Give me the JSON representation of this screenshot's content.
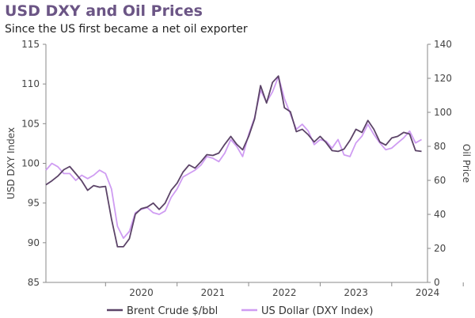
{
  "title": "USD DXY and Oil Prices",
  "subtitle": "Since the US first became a net oil exporter",
  "colors": {
    "brent": "#5c4468",
    "dxy": "#cf9cf2",
    "title": "#6b5585",
    "axis": "#8a8a8a"
  },
  "chart_data": {
    "type": "line",
    "title": "USD DXY and Oil Prices",
    "subtitle": "Since the US first became a net oil exporter",
    "xlabel": "",
    "x_ticks": [
      "2020",
      "2021",
      "2022",
      "2023",
      "2024"
    ],
    "xlim": [
      "2019-03",
      "2024-07"
    ],
    "y_left": {
      "label": "USD DXY Index",
      "range": [
        85,
        115
      ],
      "ticks": [
        "85",
        "90",
        "95",
        "100",
        "105",
        "110",
        "115"
      ]
    },
    "y_right": {
      "label": "Oil Price",
      "range": [
        0,
        140
      ],
      "ticks": [
        "0",
        "20",
        "40",
        "60",
        "80",
        "100",
        "120",
        "140"
      ]
    },
    "grid": false,
    "legend_position": "bottom",
    "series": [
      {
        "name": "Brent Crude $/bbl",
        "axis": "left",
        "color": "#5c4468",
        "x": [
          "2019-03",
          "2019-04",
          "2019-05",
          "2019-06",
          "2019-07",
          "2019-08",
          "2019-09",
          "2019-10",
          "2019-11",
          "2019-12",
          "2020-01",
          "2020-02",
          "2020-03",
          "2020-04",
          "2020-05",
          "2020-06",
          "2020-07",
          "2020-08",
          "2020-09",
          "2020-10",
          "2020-11",
          "2020-12",
          "2021-01",
          "2021-02",
          "2021-03",
          "2021-04",
          "2021-05",
          "2021-06",
          "2021-07",
          "2021-08",
          "2021-09",
          "2021-10",
          "2021-11",
          "2021-12",
          "2022-01",
          "2022-02",
          "2022-03",
          "2022-04",
          "2022-05",
          "2022-06",
          "2022-07",
          "2022-08",
          "2022-09",
          "2022-10",
          "2022-11",
          "2022-12",
          "2023-01",
          "2023-02",
          "2023-03",
          "2023-04",
          "2023-05",
          "2023-06",
          "2023-07",
          "2023-08",
          "2023-09",
          "2023-10",
          "2023-11",
          "2023-12",
          "2024-01",
          "2024-02",
          "2024-03",
          "2024-04",
          "2024-05",
          "2024-06"
        ],
        "values": [
          97.3,
          97.8,
          98.4,
          99.2,
          99.6,
          98.7,
          97.8,
          96.6,
          97.2,
          97.0,
          97.1,
          93.0,
          89.5,
          89.5,
          90.5,
          93.6,
          94.3,
          94.5,
          95.0,
          94.2,
          95.0,
          96.6,
          97.5,
          98.9,
          99.8,
          99.4,
          100.2,
          101.1,
          101.0,
          101.3,
          102.4,
          103.4,
          102.4,
          101.7,
          103.4,
          105.6,
          109.8,
          107.6,
          110.2,
          111.0,
          107.0,
          106.5,
          104.0,
          104.3,
          103.6,
          102.7,
          103.4,
          102.6,
          101.6,
          101.5,
          101.8,
          102.9,
          104.3,
          103.9,
          105.4,
          104.3,
          102.7,
          102.3,
          103.2,
          103.4,
          103.9,
          103.7,
          101.6,
          101.5
        ]
      },
      {
        "name": "US Dollar (DXY Index)",
        "axis": "right",
        "color": "#cf9cf2",
        "x": [
          "2019-03",
          "2019-04",
          "2019-05",
          "2019-06",
          "2019-07",
          "2019-08",
          "2019-09",
          "2019-10",
          "2019-11",
          "2019-12",
          "2020-01",
          "2020-02",
          "2020-03",
          "2020-04",
          "2020-05",
          "2020-06",
          "2020-07",
          "2020-08",
          "2020-09",
          "2020-10",
          "2020-11",
          "2020-12",
          "2021-01",
          "2021-02",
          "2021-03",
          "2021-04",
          "2021-05",
          "2021-06",
          "2021-07",
          "2021-08",
          "2021-09",
          "2021-10",
          "2021-11",
          "2021-12",
          "2022-01",
          "2022-02",
          "2022-03",
          "2022-04",
          "2022-05",
          "2022-06",
          "2022-07",
          "2022-08",
          "2022-09",
          "2022-10",
          "2022-11",
          "2022-12",
          "2023-01",
          "2023-02",
          "2023-03",
          "2023-04",
          "2023-05",
          "2023-06",
          "2023-07",
          "2023-08",
          "2023-09",
          "2023-10",
          "2023-11",
          "2023-12",
          "2024-01",
          "2024-02",
          "2024-03",
          "2024-04",
          "2024-05",
          "2024-06"
        ],
        "values": [
          66,
          70,
          68,
          64,
          64,
          60,
          63,
          61,
          63,
          66,
          64,
          55,
          33,
          26,
          30,
          41,
          43,
          44,
          41,
          40,
          42,
          50,
          55,
          62,
          64,
          66,
          69,
          74,
          73,
          71,
          76,
          84,
          80,
          74,
          87,
          97,
          113,
          106,
          112,
          121,
          108,
          99,
          90,
          93,
          89,
          81,
          84,
          83,
          79,
          84,
          75,
          74,
          82,
          86,
          93,
          87,
          82,
          78,
          79,
          82,
          85,
          89,
          82,
          84
        ]
      }
    ]
  },
  "legend": {
    "items": [
      {
        "label": "Brent Crude $/bbl",
        "color": "#5c4468"
      },
      {
        "label": "US Dollar (DXY Index)",
        "color": "#cf9cf2"
      }
    ]
  }
}
